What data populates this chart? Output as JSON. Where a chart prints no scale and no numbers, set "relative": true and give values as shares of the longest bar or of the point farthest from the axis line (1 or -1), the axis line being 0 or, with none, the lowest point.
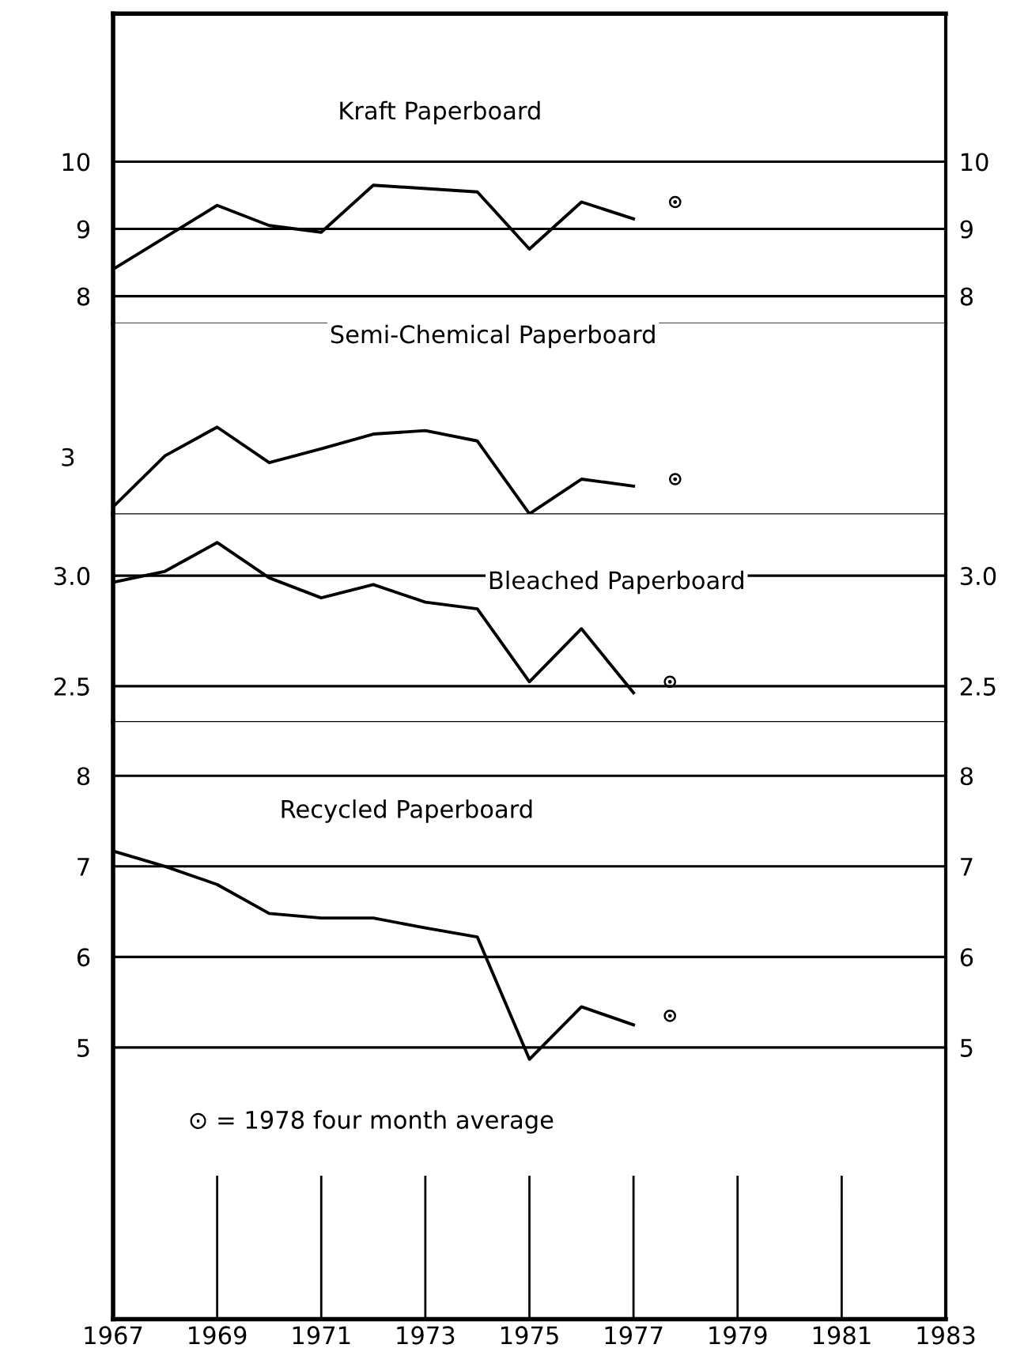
{
  "chart_data": [
    {
      "type": "line",
      "title": "Kraft Paperboard",
      "xlim": [
        1967,
        1983
      ],
      "ylim": [
        7.6,
        12.2
      ],
      "yticks": [
        8,
        9,
        10
      ],
      "y2lim": [
        7.6,
        12.2
      ],
      "y2ticks": [
        8,
        9,
        10
      ],
      "tick_labels": "y",
      "grid": "y",
      "line_style": "solid",
      "series": [
        {
          "color": "#000000",
          "x": [
            1967,
            1969,
            1970,
            1971,
            1972,
            1974,
            1975,
            1976,
            1977
          ],
          "values": [
            8.4,
            9.35,
            9.05,
            8.95,
            9.65,
            9.55,
            8.7,
            9.4,
            9.15
          ]
        },
        {
          "type": "scatter",
          "color": "#000000",
          "marker": "circle",
          "x": [
            1977.8
          ],
          "values": [
            9.4
          ]
        }
      ]
    },
    {
      "type": "line",
      "title": "Semi-Chemical Paperboard",
      "relative": true,
      "xlim": [
        1967,
        1983
      ],
      "tick_labels": false,
      "annotations": [
        "3"
      ],
      "line_style": "solid",
      "series": [
        {
          "color": "#000000",
          "x": [
            1967,
            1968,
            1969,
            1970,
            1971,
            1972,
            1973,
            1974,
            1975,
            1976,
            1977
          ],
          "values": [
            0.08,
            0.67,
            1.0,
            0.59,
            0.75,
            0.92,
            0.96,
            0.84,
            0,
            0.4,
            0.32
          ]
        },
        {
          "type": "scatter",
          "color": "#000000",
          "marker": "circle",
          "x": [
            1977.8
          ],
          "values": [
            0.4
          ]
        }
      ]
    },
    {
      "type": "line",
      "title": "Bleached Paperboard",
      "xlim": [
        1967,
        1983
      ],
      "ylim": [
        2.34,
        3.28
      ],
      "yticks": [
        {
          "value": 2.5,
          "label": "2.5"
        },
        {
          "value": 3.0,
          "label": "3.0"
        }
      ],
      "y2lim": [
        2.34,
        3.28
      ],
      "y2ticks": [
        {
          "value": 2.5,
          "label": "2.5"
        },
        {
          "value": 3.0,
          "label": "3.0"
        }
      ],
      "tick_labels": "y",
      "grid": "y",
      "line_style": "solid",
      "series": [
        {
          "color": "#000000",
          "x": [
            1967,
            1968,
            1969,
            1970,
            1971,
            1972,
            1973,
            1974,
            1975,
            1976,
            1977
          ],
          "values": [
            2.97,
            3.02,
            3.15,
            2.99,
            2.9,
            2.96,
            2.88,
            2.85,
            2.52,
            2.76,
            2.47
          ]
        },
        {
          "type": "scatter",
          "color": "#000000",
          "marker": "circle",
          "x": [
            1977.7
          ],
          "values": [
            2.52
          ]
        }
      ]
    },
    {
      "type": "line",
      "title": "Recycled Paperboard",
      "xlim": [
        1967,
        1983
      ],
      "xticks": [
        1967,
        1969,
        1971,
        1973,
        1975,
        1977,
        1979,
        1981,
        1983
      ],
      "ylim": [
        2.0,
        8.6
      ],
      "yticks": [
        5,
        6,
        7,
        8
      ],
      "y2lim": [
        2.0,
        8.6
      ],
      "y2ticks": [
        5,
        6,
        7,
        8
      ],
      "grid": "y",
      "line_style": "solid",
      "annotations": [
        "⊙ = 1978 four month average"
      ],
      "series": [
        {
          "color": "#000000",
          "x": [
            1967,
            1968,
            1969,
            1970,
            1971,
            1972,
            1973,
            1974,
            1975,
            1976,
            1977
          ],
          "values": [
            7.17,
            7.0,
            6.8,
            6.48,
            6.43,
            6.43,
            6.32,
            6.22,
            4.87,
            5.45,
            5.25
          ]
        },
        {
          "type": "scatter",
          "color": "#000000",
          "marker": "circle",
          "x": [
            1977.7
          ],
          "values": [
            5.35
          ]
        }
      ]
    }
  ]
}
